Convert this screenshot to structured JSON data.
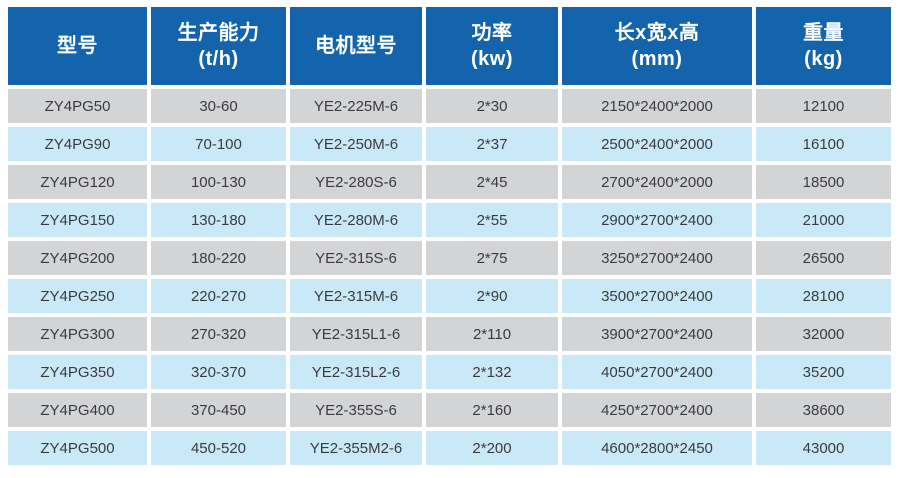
{
  "table": {
    "columns": [
      {
        "label": "型号",
        "unit": ""
      },
      {
        "label": "生产能力",
        "unit": "(t/h)"
      },
      {
        "label": "电机型号",
        "unit": ""
      },
      {
        "label": "功率",
        "unit": "(kw)"
      },
      {
        "label": "长x宽x高",
        "unit": "(mm)"
      },
      {
        "label": "重量",
        "unit": "(kg)"
      }
    ],
    "rows": [
      [
        "ZY4PG50",
        "30-60",
        "YE2-225M-6",
        "2*30",
        "2150*2400*2000",
        "12100"
      ],
      [
        "ZY4PG90",
        "70-100",
        "YE2-250M-6",
        "2*37",
        "2500*2400*2000",
        "16100"
      ],
      [
        "ZY4PG120",
        "100-130",
        "YE2-280S-6",
        "2*45",
        "2700*2400*2000",
        "18500"
      ],
      [
        "ZY4PG150",
        "130-180",
        "YE2-280M-6",
        "2*55",
        "2900*2700*2400",
        "21000"
      ],
      [
        "ZY4PG200",
        "180-220",
        "YE2-315S-6",
        "2*75",
        "3250*2700*2400",
        "26500"
      ],
      [
        "ZY4PG250",
        "220-270",
        "YE2-315M-6",
        "2*90",
        "3500*2700*2400",
        "28100"
      ],
      [
        "ZY4PG300",
        "270-320",
        "YE2-315L1-6",
        "2*110",
        "3900*2700*2400",
        "32000"
      ],
      [
        "ZY4PG350",
        "320-370",
        "YE2-315L2-6",
        "2*132",
        "4050*2700*2400",
        "35200"
      ],
      [
        "ZY4PG400",
        "370-450",
        "YE2-355S-6",
        "2*160",
        "4250*2700*2400",
        "38600"
      ],
      [
        "ZY4PG500",
        "450-520",
        "YE2-355M2-6",
        "2*200",
        "4600*2800*2450",
        "43000"
      ]
    ]
  },
  "colors": {
    "header_bg": "#1464ad",
    "header_text": "#ffffff",
    "row_gray": "#d3d4d6",
    "row_blue": "#c9e9f8",
    "cell_text": "#3c3c3e",
    "gap": "#ffffff"
  },
  "chart_data": {
    "type": "table",
    "columns": [
      "型号",
      "生产能力 (t/h)",
      "电机型号",
      "功率 (kw)",
      "长x宽x高 (mm)",
      "重量 (kg)"
    ],
    "rows": [
      [
        "ZY4PG50",
        "30-60",
        "YE2-225M-6",
        "2*30",
        "2150*2400*2000",
        "12100"
      ],
      [
        "ZY4PG90",
        "70-100",
        "YE2-250M-6",
        "2*37",
        "2500*2400*2000",
        "16100"
      ],
      [
        "ZY4PG120",
        "100-130",
        "YE2-280S-6",
        "2*45",
        "2700*2400*2000",
        "18500"
      ],
      [
        "ZY4PG150",
        "130-180",
        "YE2-280M-6",
        "2*55",
        "2900*2700*2400",
        "21000"
      ],
      [
        "ZY4PG200",
        "180-220",
        "YE2-315S-6",
        "2*75",
        "3250*2700*2400",
        "26500"
      ],
      [
        "ZY4PG250",
        "220-270",
        "YE2-315M-6",
        "2*90",
        "3500*2700*2400",
        "28100"
      ],
      [
        "ZY4PG300",
        "270-320",
        "YE2-315L1-6",
        "2*110",
        "3900*2700*2400",
        "32000"
      ],
      [
        "ZY4PG350",
        "320-370",
        "YE2-315L2-6",
        "2*132",
        "4050*2700*2400",
        "35200"
      ],
      [
        "ZY4PG400",
        "370-450",
        "YE2-355S-6",
        "2*160",
        "4250*2700*2400",
        "38600"
      ],
      [
        "ZY4PG500",
        "450-520",
        "YE2-355M2-6",
        "2*200",
        "4600*2800*2450",
        "43000"
      ]
    ],
    "layout": {
      "header_position": "top",
      "row_striping": [
        "gray",
        "light-blue"
      ],
      "grid": "white-gaps"
    }
  }
}
